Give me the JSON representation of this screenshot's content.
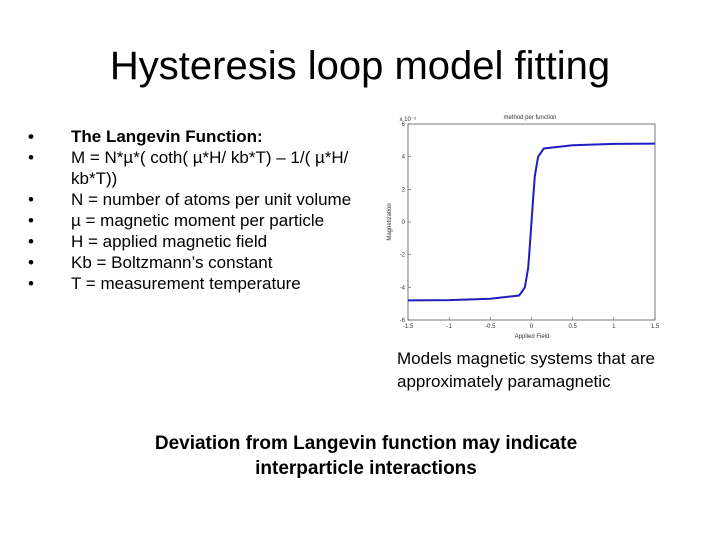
{
  "slide": {
    "title": "Hysteresis loop model fitting",
    "bullets": [
      "The Langevin Function:",
      "M = N*µ*( coth( µ*H/ kb*T) – 1/( µ*H/ kb*T))",
      "N = number of atoms per unit volume",
      "µ = magnetic moment per particle",
      "H = applied magnetic field",
      "Kb = Boltzmann’s constant",
      "T = measurement temperature"
    ],
    "caption": "Models magnetic systems that are approximately paramagnetic",
    "footer_line1": "Deviation from Langevin function may indicate",
    "footer_line2": "interparticle interactions"
  },
  "chart_data": {
    "type": "line",
    "title": "method per function",
    "xlabel": "Applied Field",
    "ylabel": "Magnetization",
    "x_ticks": [
      "-1.5",
      "-1",
      "-0.5",
      "0",
      "0.5",
      "1",
      "1.5"
    ],
    "y_ticks": [
      "-6",
      "-4",
      "-2",
      "0",
      "2",
      "4",
      "6"
    ],
    "y_exponent": "x 10⁻⁵",
    "xlim": [
      -1.5,
      1.5
    ],
    "ylim": [
      -6,
      6
    ],
    "line_color": "#1f1fbf",
    "series": [
      {
        "x": [
          -1.5,
          -1.0,
          -0.5,
          -0.15,
          -0.08,
          -0.04,
          -0.02,
          0.0,
          0.02,
          0.04,
          0.08,
          0.15,
          0.5,
          1.0,
          1.5
        ],
        "y": [
          -4.8,
          -4.78,
          -4.7,
          -4.5,
          -4.0,
          -2.8,
          -1.4,
          0.0,
          1.4,
          2.8,
          4.0,
          4.5,
          4.7,
          4.78,
          4.8
        ]
      }
    ]
  }
}
